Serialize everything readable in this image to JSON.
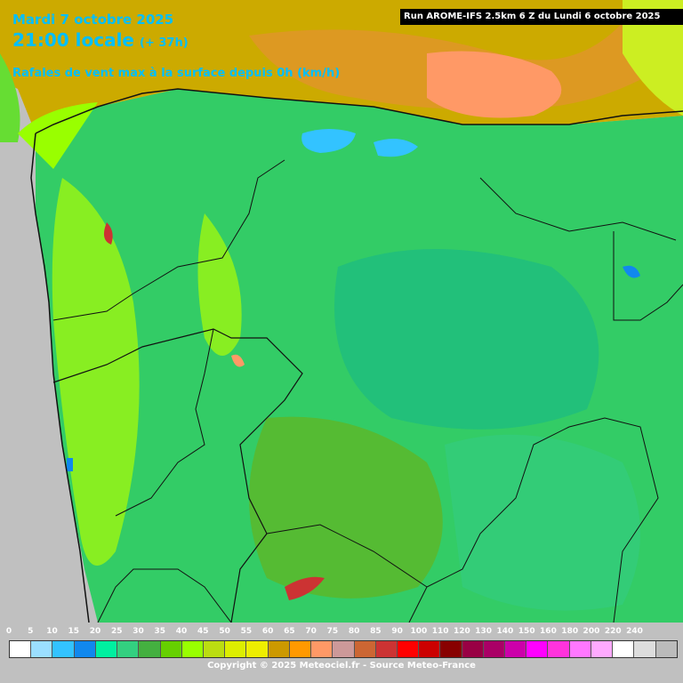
{
  "header": {
    "date": "Mardi 7 octobre 2025",
    "time": "21:00 locale",
    "lead": "(+ 37h)",
    "parameter": "Rafales de vent max à la surface depuis 0h (km/h)",
    "run": "Run AROME-IFS 2.5km 6 Z du Lundi 6 octobre 2025"
  },
  "legend": {
    "labels": [
      "0",
      "5",
      "10",
      "15",
      "20",
      "25",
      "30",
      "35",
      "40",
      "45",
      "50",
      "55",
      "60",
      "65",
      "70",
      "75",
      "80",
      "85",
      "90",
      "100",
      "110",
      "120",
      "130",
      "140",
      "150",
      "160",
      "180",
      "200",
      "220",
      "240"
    ],
    "colors": [
      "#ffffff",
      "#9bdfff",
      "#33c3ff",
      "#1188ee",
      "#00f0a0",
      "#33d080",
      "#44b040",
      "#66d000",
      "#99ff00",
      "#bbdd11",
      "#ddee00",
      "#eeee00",
      "#cc9900",
      "#ff9900",
      "#ff9966",
      "#cc9999",
      "#cc6633",
      "#cc3333",
      "#ff0000",
      "#cc0000",
      "#880000",
      "#990044",
      "#aa0066",
      "#cc00aa",
      "#ff00ff",
      "#ff33dd",
      "#ff77ff",
      "#ffaaff",
      "#ffffff",
      "#dddddd",
      "#bbbbbb"
    ]
  },
  "copyright": "Copyright © 2025 Meteociel.fr - Source Meteo-France"
}
